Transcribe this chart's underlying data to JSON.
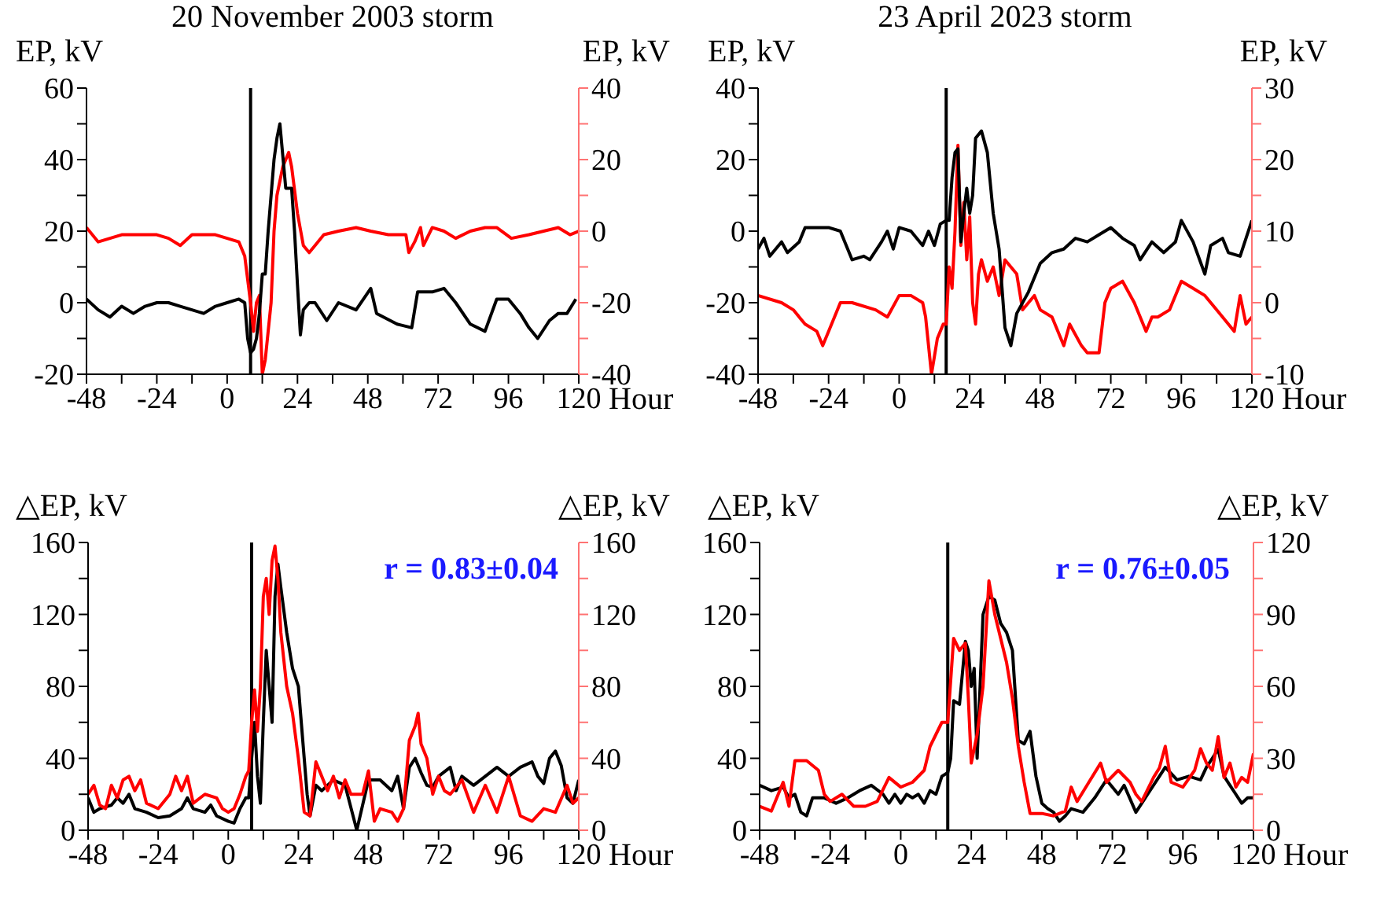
{
  "chart_data": [
    {
      "type": "line",
      "title": "20 November 2003 storm",
      "xlabel": "Hour",
      "ylabel": "EP, kV",
      "y2label": "EP, kV",
      "xlim": [
        -48,
        120
      ],
      "xticks": [
        -48,
        {
          "value": -36,
          "label": null
        },
        -24,
        {
          "value": -12,
          "label": null
        },
        0,
        {
          "value": 12,
          "label": null
        },
        24,
        {
          "value": 36,
          "label": null
        },
        48,
        {
          "value": 60,
          "label": null
        },
        72,
        {
          "value": 84,
          "label": null
        },
        96,
        {
          "value": 108,
          "label": null
        },
        120
      ],
      "ylim": [
        -20,
        60
      ],
      "yticks": [
        -20,
        {
          "value": -10,
          "label": null
        },
        0,
        {
          "value": 10,
          "label": null
        },
        20,
        {
          "value": 30,
          "label": null
        },
        40,
        {
          "value": 50,
          "label": null
        },
        60
      ],
      "y2lim": [
        -40,
        40
      ],
      "y2ticks": [
        -40,
        {
          "value": -30,
          "label": null
        },
        -20,
        {
          "value": -10,
          "label": null
        },
        0,
        {
          "value": 10,
          "label": null
        },
        20,
        {
          "value": 30,
          "label": null
        },
        40
      ],
      "ref_lines": [
        {
          "axis": "x",
          "value": 8,
          "color": "#000000"
        }
      ],
      "series": [
        {
          "color": "#ff0000",
          "axis": "y2",
          "x": [
            -48,
            -44,
            -40,
            -36,
            -32,
            -28,
            -24,
            -20,
            -16,
            -12,
            -8,
            -4,
            0,
            4,
            6,
            8,
            9,
            10,
            11,
            12,
            13,
            15,
            16,
            17,
            19,
            21,
            22,
            24,
            26,
            28,
            30,
            33,
            38,
            44,
            49,
            55,
            61,
            62,
            64,
            66,
            67,
            70,
            74,
            78,
            83,
            88,
            92,
            97,
            103,
            108,
            113,
            117,
            120
          ],
          "values": [
            1,
            -3,
            -2,
            -1,
            -1,
            -1,
            -1,
            -2,
            -4,
            -1,
            -1,
            -1,
            -2,
            -3,
            -7,
            -20,
            -28,
            -20,
            -18,
            -40,
            -36,
            -20,
            0,
            10,
            18,
            22,
            18,
            5,
            -4,
            -6,
            -4,
            -1,
            0,
            1,
            0,
            -1,
            -1,
            -6,
            -3,
            1,
            -4,
            1,
            0,
            -2,
            0,
            1,
            1,
            -2,
            -1,
            0,
            1,
            -1,
            0
          ]
        },
        {
          "color": "#000000",
          "x": [
            -48,
            -44,
            -40,
            -36,
            -32,
            -28,
            -24,
            -20,
            -16,
            -12,
            -8,
            -4,
            0,
            4,
            6,
            7,
            8,
            9,
            10,
            11,
            12,
            13,
            14,
            15,
            16,
            17,
            18,
            20,
            22,
            23,
            24,
            25,
            26,
            28,
            30,
            34,
            38,
            44,
            49,
            51,
            58,
            63,
            65,
            70,
            74,
            78,
            83,
            88,
            92,
            96,
            100,
            103,
            106,
            110,
            113,
            116,
            119
          ],
          "values": [
            1,
            -2,
            -4,
            -1,
            -3,
            -1,
            0,
            0,
            -1,
            -2,
            -3,
            -1,
            0,
            1,
            0,
            -10,
            -14,
            -13,
            -10,
            -3,
            8,
            8,
            20,
            30,
            40,
            46,
            50,
            32,
            32,
            20,
            5,
            -9,
            -2,
            0,
            0,
            -5,
            0,
            -2,
            4,
            -3,
            -6,
            -7,
            3,
            3,
            4,
            0,
            -6,
            -8,
            1,
            1,
            -3,
            -7,
            -10,
            -5,
            -3,
            -3,
            1
          ]
        }
      ]
    },
    {
      "type": "line",
      "title": "23 April 2023 storm",
      "xlabel": "Hour",
      "ylabel": "EP, kV",
      "y2label": "EP, kV",
      "xlim": [
        -48,
        120
      ],
      "xticks": [
        -48,
        {
          "value": -36,
          "label": null
        },
        -24,
        {
          "value": -12,
          "label": null
        },
        0,
        {
          "value": 12,
          "label": null
        },
        24,
        {
          "value": 36,
          "label": null
        },
        48,
        {
          "value": 60,
          "label": null
        },
        72,
        {
          "value": 84,
          "label": null
        },
        96,
        {
          "value": 108,
          "label": null
        },
        120
      ],
      "ylim": [
        -40,
        40
      ],
      "yticks": [
        -40,
        {
          "value": -30,
          "label": null
        },
        -20,
        {
          "value": -10,
          "label": null
        },
        0,
        {
          "value": 10,
          "label": null
        },
        20,
        {
          "value": 30,
          "label": null
        },
        40
      ],
      "y2lim": [
        -10,
        30
      ],
      "y2ticks": [
        -10,
        {
          "value": -5,
          "label": null
        },
        0,
        {
          "value": 5,
          "label": null
        },
        10,
        {
          "value": 15,
          "label": null
        },
        20,
        {
          "value": 25,
          "label": null
        },
        30
      ],
      "ref_lines": [
        {
          "axis": "x",
          "value": 16,
          "color": "#000000"
        }
      ],
      "series": [
        {
          "color": "#ff0000",
          "axis": "y2",
          "x": [
            -48,
            -40,
            -36,
            -32,
            -28,
            -26,
            -24,
            -20,
            -16,
            -8,
            -4,
            0,
            4,
            8,
            9,
            11,
            13,
            15,
            16,
            17,
            18,
            19,
            20,
            21,
            22,
            23,
            24,
            25,
            26,
            27,
            28,
            30,
            32,
            34,
            36,
            38,
            40,
            42,
            46,
            48,
            52,
            56,
            58,
            62,
            64,
            68,
            70,
            72,
            76,
            80,
            84,
            86,
            88,
            92,
            96,
            100,
            104,
            108,
            112,
            114,
            116,
            118,
            120
          ],
          "values": [
            1,
            0,
            -1,
            -3,
            -4,
            -6,
            -4,
            0,
            0,
            -1,
            -2,
            1,
            1,
            0,
            -2,
            -10,
            -5,
            -3,
            -3,
            5,
            2,
            10,
            22,
            8,
            14,
            6,
            12,
            0,
            -3,
            4,
            6,
            3,
            5,
            1,
            6,
            5,
            4,
            -1,
            1,
            -1,
            -2,
            -6,
            -3,
            -6,
            -7,
            -7,
            0,
            2,
            3,
            0,
            -4,
            -2,
            -2,
            -1,
            3,
            2,
            1,
            -1,
            -3,
            -4,
            1,
            -3,
            -2
          ]
        },
        {
          "color": "#000000",
          "x": [
            -48,
            -46,
            -44,
            -40,
            -38,
            -34,
            -32,
            -28,
            -24,
            -20,
            -16,
            -12,
            -10,
            -6,
            -4,
            -2,
            0,
            4,
            8,
            10,
            12,
            14,
            16,
            17,
            18,
            19,
            20,
            21,
            22,
            23,
            24,
            25,
            26,
            28,
            30,
            32,
            34,
            36,
            38,
            40,
            44,
            48,
            52,
            56,
            60,
            64,
            68,
            72,
            76,
            80,
            82,
            86,
            90,
            94,
            96,
            100,
            104,
            106,
            110,
            112,
            116,
            120
          ],
          "values": [
            -5,
            -2,
            -7,
            -3,
            -6,
            -3,
            1,
            1,
            1,
            0,
            -8,
            -7,
            -8,
            -3,
            0,
            -5,
            1,
            0,
            -4,
            0,
            -4,
            2,
            3,
            3,
            15,
            22,
            23,
            -3,
            5,
            12,
            5,
            10,
            26,
            28,
            22,
            5,
            -5,
            -27,
            -32,
            -23,
            -17,
            -9,
            -6,
            -5,
            -2,
            -3,
            -1,
            1,
            -2,
            -4,
            -8,
            -3,
            -6,
            -3,
            3,
            -3,
            -12,
            -4,
            -2,
            -6,
            -7,
            3
          ]
        }
      ]
    },
    {
      "type": "line",
      "xlabel": "Hour",
      "ylabel": "△EP, kV",
      "y2label": "△EP, kV",
      "annotations": [
        "r = 0.83±0.04"
      ],
      "xlim": [
        -48,
        120
      ],
      "xticks": [
        -48,
        {
          "value": -36,
          "label": null
        },
        -24,
        {
          "value": -12,
          "label": null
        },
        0,
        {
          "value": 12,
          "label": null
        },
        24,
        {
          "value": 36,
          "label": null
        },
        48,
        {
          "value": 60,
          "label": null
        },
        72,
        {
          "value": 84,
          "label": null
        },
        96,
        {
          "value": 108,
          "label": null
        },
        120
      ],
      "ylim": [
        0,
        160
      ],
      "yticks": [
        0,
        {
          "value": 20,
          "label": null
        },
        40,
        {
          "value": 60,
          "label": null
        },
        80,
        {
          "value": 100,
          "label": null
        },
        120,
        {
          "value": 140,
          "label": null
        },
        160
      ],
      "y2lim": [
        0,
        160
      ],
      "y2ticks": [
        0,
        {
          "value": 20,
          "label": null
        },
        40,
        {
          "value": 60,
          "label": null
        },
        80,
        {
          "value": 100,
          "label": null
        },
        120,
        {
          "value": 140,
          "label": null
        },
        160
      ],
      "ref_lines": [
        {
          "axis": "x",
          "value": 8,
          "color": "#000000"
        }
      ],
      "series": [
        {
          "color": "#000000",
          "x": [
            -48,
            -46,
            -44,
            -40,
            -38,
            -36,
            -34,
            -32,
            -28,
            -24,
            -20,
            -16,
            -14,
            -12,
            -8,
            -6,
            -4,
            0,
            2,
            4,
            6,
            7,
            8,
            9,
            10,
            11,
            12,
            13,
            14,
            15,
            16,
            17,
            18,
            20,
            22,
            24,
            26,
            27,
            28,
            30,
            32,
            36,
            40,
            44,
            48,
            52,
            56,
            58,
            60,
            62,
            64,
            66,
            68,
            70,
            72,
            76,
            78,
            80,
            84,
            88,
            92,
            96,
            100,
            104,
            106,
            108,
            110,
            112,
            114,
            116,
            118,
            120
          ],
          "values": [
            18,
            10,
            12,
            14,
            18,
            15,
            20,
            12,
            10,
            7,
            8,
            12,
            18,
            12,
            10,
            14,
            8,
            5,
            4,
            12,
            18,
            18,
            40,
            60,
            30,
            15,
            60,
            100,
            80,
            60,
            130,
            148,
            135,
            110,
            90,
            80,
            40,
            20,
            8,
            25,
            22,
            28,
            25,
            0,
            28,
            28,
            22,
            30,
            12,
            35,
            40,
            32,
            25,
            24,
            30,
            35,
            22,
            30,
            25,
            30,
            35,
            30,
            35,
            38,
            30,
            26,
            40,
            44,
            36,
            18,
            15,
            28
          ]
        },
        {
          "color": "#ff0000",
          "axis": "y2",
          "x": [
            -48,
            -46,
            -44,
            -42,
            -40,
            -38,
            -36,
            -34,
            -32,
            -30,
            -28,
            -24,
            -20,
            -18,
            -16,
            -14,
            -12,
            -8,
            -4,
            -2,
            0,
            2,
            4,
            6,
            7,
            8,
            9,
            10,
            11,
            12,
            13,
            14,
            15,
            16,
            17,
            18,
            20,
            22,
            24,
            26,
            28,
            30,
            32,
            34,
            36,
            38,
            40,
            42,
            44,
            46,
            48,
            50,
            52,
            56,
            58,
            60,
            62,
            64,
            65,
            66,
            68,
            70,
            72,
            74,
            76,
            80,
            84,
            88,
            92,
            96,
            100,
            104,
            108,
            112,
            116,
            118,
            120
          ],
          "values": [
            20,
            25,
            14,
            12,
            25,
            18,
            28,
            30,
            22,
            28,
            15,
            12,
            20,
            30,
            22,
            30,
            15,
            20,
            18,
            12,
            10,
            12,
            20,
            30,
            33,
            60,
            78,
            55,
            80,
            130,
            140,
            120,
            150,
            158,
            140,
            110,
            80,
            65,
            40,
            10,
            8,
            38,
            30,
            22,
            30,
            18,
            28,
            20,
            20,
            20,
            33,
            5,
            12,
            10,
            5,
            12,
            50,
            58,
            65,
            48,
            40,
            20,
            30,
            22,
            20,
            28,
            10,
            25,
            10,
            30,
            8,
            5,
            12,
            10,
            25,
            15,
            18
          ]
        }
      ]
    },
    {
      "type": "line",
      "xlabel": "Hour",
      "ylabel": "△EP, kV",
      "y2label": "△EP, kV",
      "annotations": [
        "r = 0.76±0.05"
      ],
      "xlim": [
        -48,
        120
      ],
      "xticks": [
        -48,
        {
          "value": -36,
          "label": null
        },
        -24,
        {
          "value": -12,
          "label": null
        },
        0,
        {
          "value": 12,
          "label": null
        },
        24,
        {
          "value": 36,
          "label": null
        },
        48,
        {
          "value": 60,
          "label": null
        },
        72,
        {
          "value": 84,
          "label": null
        },
        96,
        {
          "value": 108,
          "label": null
        },
        120
      ],
      "ylim": [
        0,
        160
      ],
      "yticks": [
        0,
        {
          "value": 20,
          "label": null
        },
        40,
        {
          "value": 60,
          "label": null
        },
        80,
        {
          "value": 100,
          "label": null
        },
        120,
        {
          "value": 140,
          "label": null
        },
        160
      ],
      "y2lim": [
        0,
        120
      ],
      "y2ticks": [
        0,
        {
          "value": 15,
          "label": null
        },
        30,
        {
          "value": 45,
          "label": null
        },
        60,
        {
          "value": 75,
          "label": null
        },
        90,
        {
          "value": 105,
          "label": null
        },
        120
      ],
      "ref_lines": [
        {
          "axis": "x",
          "value": 16,
          "color": "#000000"
        }
      ],
      "series": [
        {
          "color": "#000000",
          "x": [
            -48,
            -44,
            -40,
            -38,
            -36,
            -34,
            -32,
            -30,
            -26,
            -22,
            -18,
            -14,
            -10,
            -6,
            -4,
            -2,
            0,
            2,
            4,
            6,
            8,
            10,
            12,
            14,
            16,
            17,
            18,
            20,
            22,
            23,
            24,
            25,
            26,
            27,
            28,
            30,
            32,
            34,
            36,
            38,
            40,
            42,
            44,
            46,
            48,
            50,
            52,
            54,
            56,
            58,
            62,
            66,
            70,
            74,
            76,
            80,
            84,
            88,
            90,
            94,
            98,
            102,
            104,
            106,
            108,
            110,
            112,
            114,
            116,
            118,
            120
          ],
          "values": [
            25,
            22,
            24,
            18,
            20,
            10,
            8,
            18,
            18,
            15,
            18,
            22,
            25,
            20,
            15,
            20,
            15,
            20,
            18,
            20,
            15,
            22,
            20,
            30,
            32,
            40,
            72,
            70,
            105,
            100,
            80,
            90,
            40,
            80,
            120,
            130,
            128,
            115,
            110,
            100,
            50,
            48,
            55,
            30,
            15,
            12,
            10,
            5,
            8,
            12,
            10,
            18,
            28,
            20,
            25,
            10,
            20,
            30,
            35,
            28,
            30,
            28,
            35,
            40,
            45,
            30,
            25,
            20,
            15,
            18,
            18
          ]
        },
        {
          "color": "#ff0000",
          "axis": "y2",
          "x": [
            -48,
            -44,
            -40,
            -38,
            -36,
            -32,
            -28,
            -26,
            -24,
            -20,
            -16,
            -12,
            -8,
            -4,
            0,
            4,
            8,
            10,
            12,
            14,
            16,
            18,
            20,
            22,
            23,
            24,
            26,
            28,
            30,
            32,
            34,
            36,
            38,
            40,
            42,
            44,
            48,
            52,
            56,
            58,
            60,
            64,
            68,
            70,
            74,
            78,
            80,
            82,
            86,
            88,
            90,
            92,
            96,
            100,
            102,
            104,
            106,
            108,
            110,
            112,
            114,
            116,
            118,
            120
          ],
          "values": [
            10,
            8,
            20,
            10,
            29,
            29,
            25,
            15,
            12,
            15,
            10,
            10,
            12,
            22,
            18,
            20,
            25,
            35,
            40,
            45,
            45,
            80,
            75,
            78,
            55,
            28,
            40,
            60,
            104,
            90,
            80,
            70,
            55,
            35,
            20,
            7,
            7,
            6,
            8,
            18,
            12,
            20,
            28,
            20,
            25,
            20,
            15,
            12,
            22,
            26,
            35,
            20,
            18,
            25,
            34,
            28,
            25,
            39,
            22,
            28,
            18,
            22,
            20,
            32
          ]
        }
      ]
    }
  ]
}
